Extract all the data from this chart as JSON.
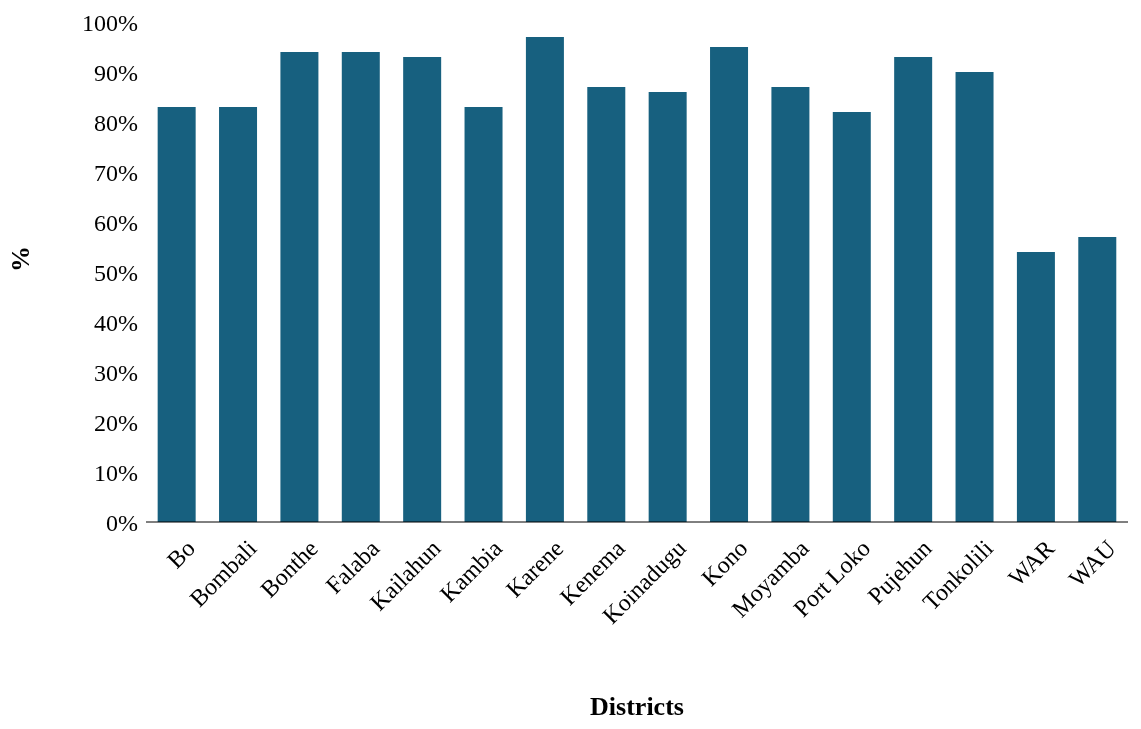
{
  "chart_data": {
    "type": "bar",
    "xlabel": "Districts",
    "ylabel": "%",
    "categories": [
      "Bo",
      "Bombali",
      "Bonthe",
      "Falaba",
      "Kailahun",
      "Kambia",
      "Karene",
      "Kenema",
      "Koinadugu",
      "Kono",
      "Moyamba",
      "Port Loko",
      "Pujehun",
      "Tonkolili",
      "WAR",
      "WAU"
    ],
    "values": [
      83,
      83,
      94,
      94,
      93,
      83,
      97,
      87,
      86,
      95,
      87,
      82,
      93,
      90,
      54,
      57
    ],
    "color": "#17607f",
    "ylim": [
      0,
      100
    ],
    "yticks": [
      {
        "value": 0,
        "label": "0%"
      },
      {
        "value": 10,
        "label": "10%"
      },
      {
        "value": 20,
        "label": "20%"
      },
      {
        "value": 30,
        "label": "30%"
      },
      {
        "value": 40,
        "label": "40%"
      },
      {
        "value": 50,
        "label": "50%"
      },
      {
        "value": 60,
        "label": "60%"
      },
      {
        "value": 70,
        "label": "70%"
      },
      {
        "value": 80,
        "label": "80%"
      },
      {
        "value": 90,
        "label": "90%"
      },
      {
        "value": 100,
        "label": "100%"
      }
    ],
    "grid": false,
    "legend": false
  }
}
